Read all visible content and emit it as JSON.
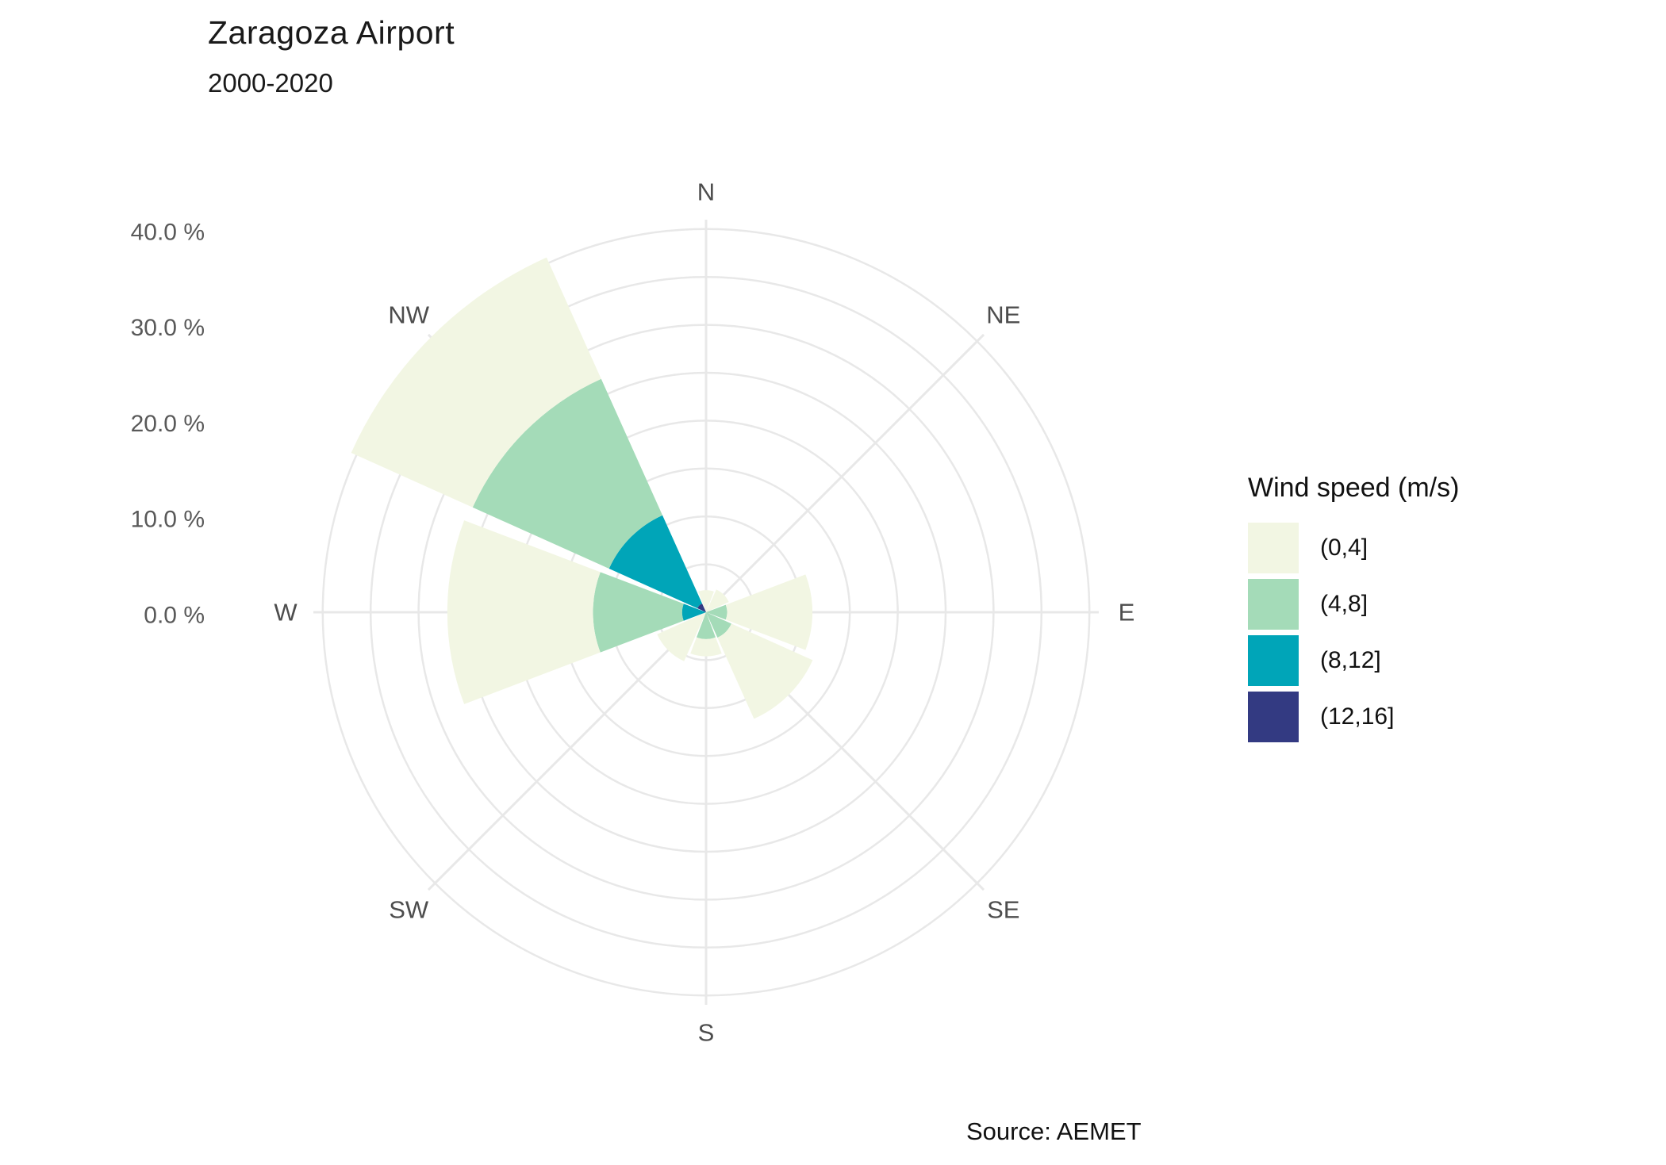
{
  "title": "Zaragoza Airport",
  "subtitle": "2000-2020",
  "source_note": "Source: AEMET",
  "legend": {
    "title": "Wind speed (m/s)",
    "items": [
      {
        "label": "(0,4]",
        "color": "#f2f6e3"
      },
      {
        "label": "(4,8]",
        "color": "#a4dbb8"
      },
      {
        "label": "(8,12]",
        "color": "#00a5b8"
      },
      {
        "label": "(12,16]",
        "color": "#333a82"
      }
    ]
  },
  "radial_axis": {
    "unit": "%",
    "ticks": [
      {
        "label": "0.0 %",
        "value": 0
      },
      {
        "label": "10.0 %",
        "value": 10
      },
      {
        "label": "20.0 %",
        "value": 20
      },
      {
        "label": "30.0 %",
        "value": 30
      },
      {
        "label": "40.0 %",
        "value": 40
      }
    ]
  },
  "chart_data": {
    "type": "windrose-polar-stacked-bar",
    "title": "Zaragoza Airport",
    "subtitle": "2000-2020",
    "directions": [
      "N",
      "NE",
      "E",
      "SE",
      "S",
      "SW",
      "W",
      "NW"
    ],
    "speed_bins": [
      "(0,4]",
      "(4,8]",
      "(8,12]",
      "(12,16]"
    ],
    "series": [
      {
        "name": "(0,4]",
        "color": "#f2f6e3",
        "values": [
          2.3,
          2.6,
          8.9,
          9.3,
          1.8,
          5.6,
          15.2,
          13.9
        ]
      },
      {
        "name": "(4,8]",
        "color": "#a4dbb8",
        "values": [
          0,
          0,
          2.2,
          2.9,
          2.8,
          0,
          9.3,
          15.6
        ]
      },
      {
        "name": "(8,12]",
        "color": "#00a5b8",
        "values": [
          0,
          0,
          0,
          0,
          0,
          0,
          2.5,
          10.1
        ]
      },
      {
        "name": "(12,16]",
        "color": "#333a82",
        "values": [
          0,
          0,
          0,
          0,
          0,
          0,
          0,
          1.0
        ]
      }
    ],
    "sector_totals_pct": [
      2.3,
      2.6,
      11.1,
      12.2,
      4.6,
      5.6,
      27.0,
      40.6
    ],
    "stack_order_from_center": [
      "(12,16]",
      "(8,12]",
      "(4,8]",
      "(0,4]"
    ],
    "rings_pct": [
      5,
      10,
      15,
      20,
      25,
      30,
      35,
      40
    ],
    "labeled_rings_pct": [
      0,
      10,
      20,
      30,
      40
    ],
    "radial_range_pct": [
      0,
      41
    ],
    "grid": true,
    "legend_position": "right",
    "style": {
      "grid_color": "#e8e8e8",
      "direction_label_color": "#4d4d4d",
      "tick_label_color": "#595959"
    }
  }
}
